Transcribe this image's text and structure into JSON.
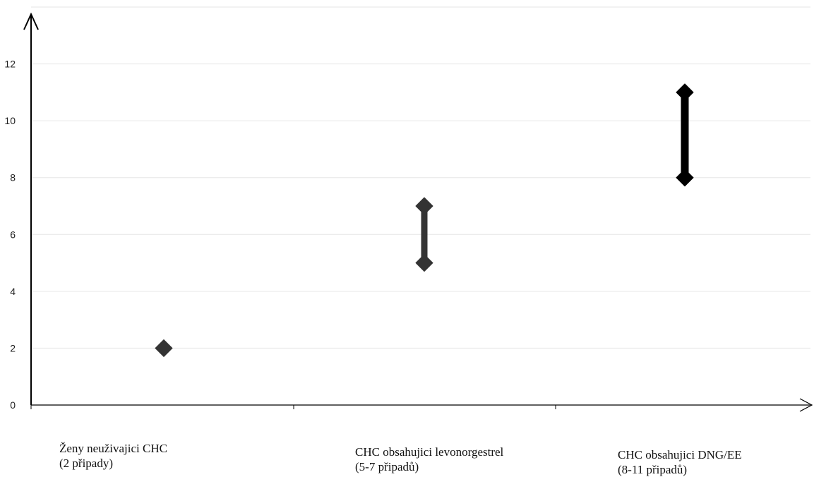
{
  "chart_data": {
    "type": "scatter",
    "title": "",
    "xlabel": "",
    "ylabel": "",
    "ylim": [
      0,
      14
    ],
    "yticks": [
      0,
      2,
      4,
      6,
      8,
      10,
      12
    ],
    "grid": true,
    "categories": [
      {
        "line1": "Ženy neuživajici CHC",
        "line2": "(2 připady)",
        "low": 2,
        "high": 2,
        "color": "#333333"
      },
      {
        "line1": "CHC obsahujici levonorgestrel",
        "line2": "(5-7 připadů)",
        "low": 5,
        "high": 7,
        "color": "#333333"
      },
      {
        "line1": "CHC obsahujici DNG/EE",
        "line2": "(8-11 připadů)",
        "low": 8,
        "high": 11,
        "color": "#000000"
      }
    ]
  }
}
